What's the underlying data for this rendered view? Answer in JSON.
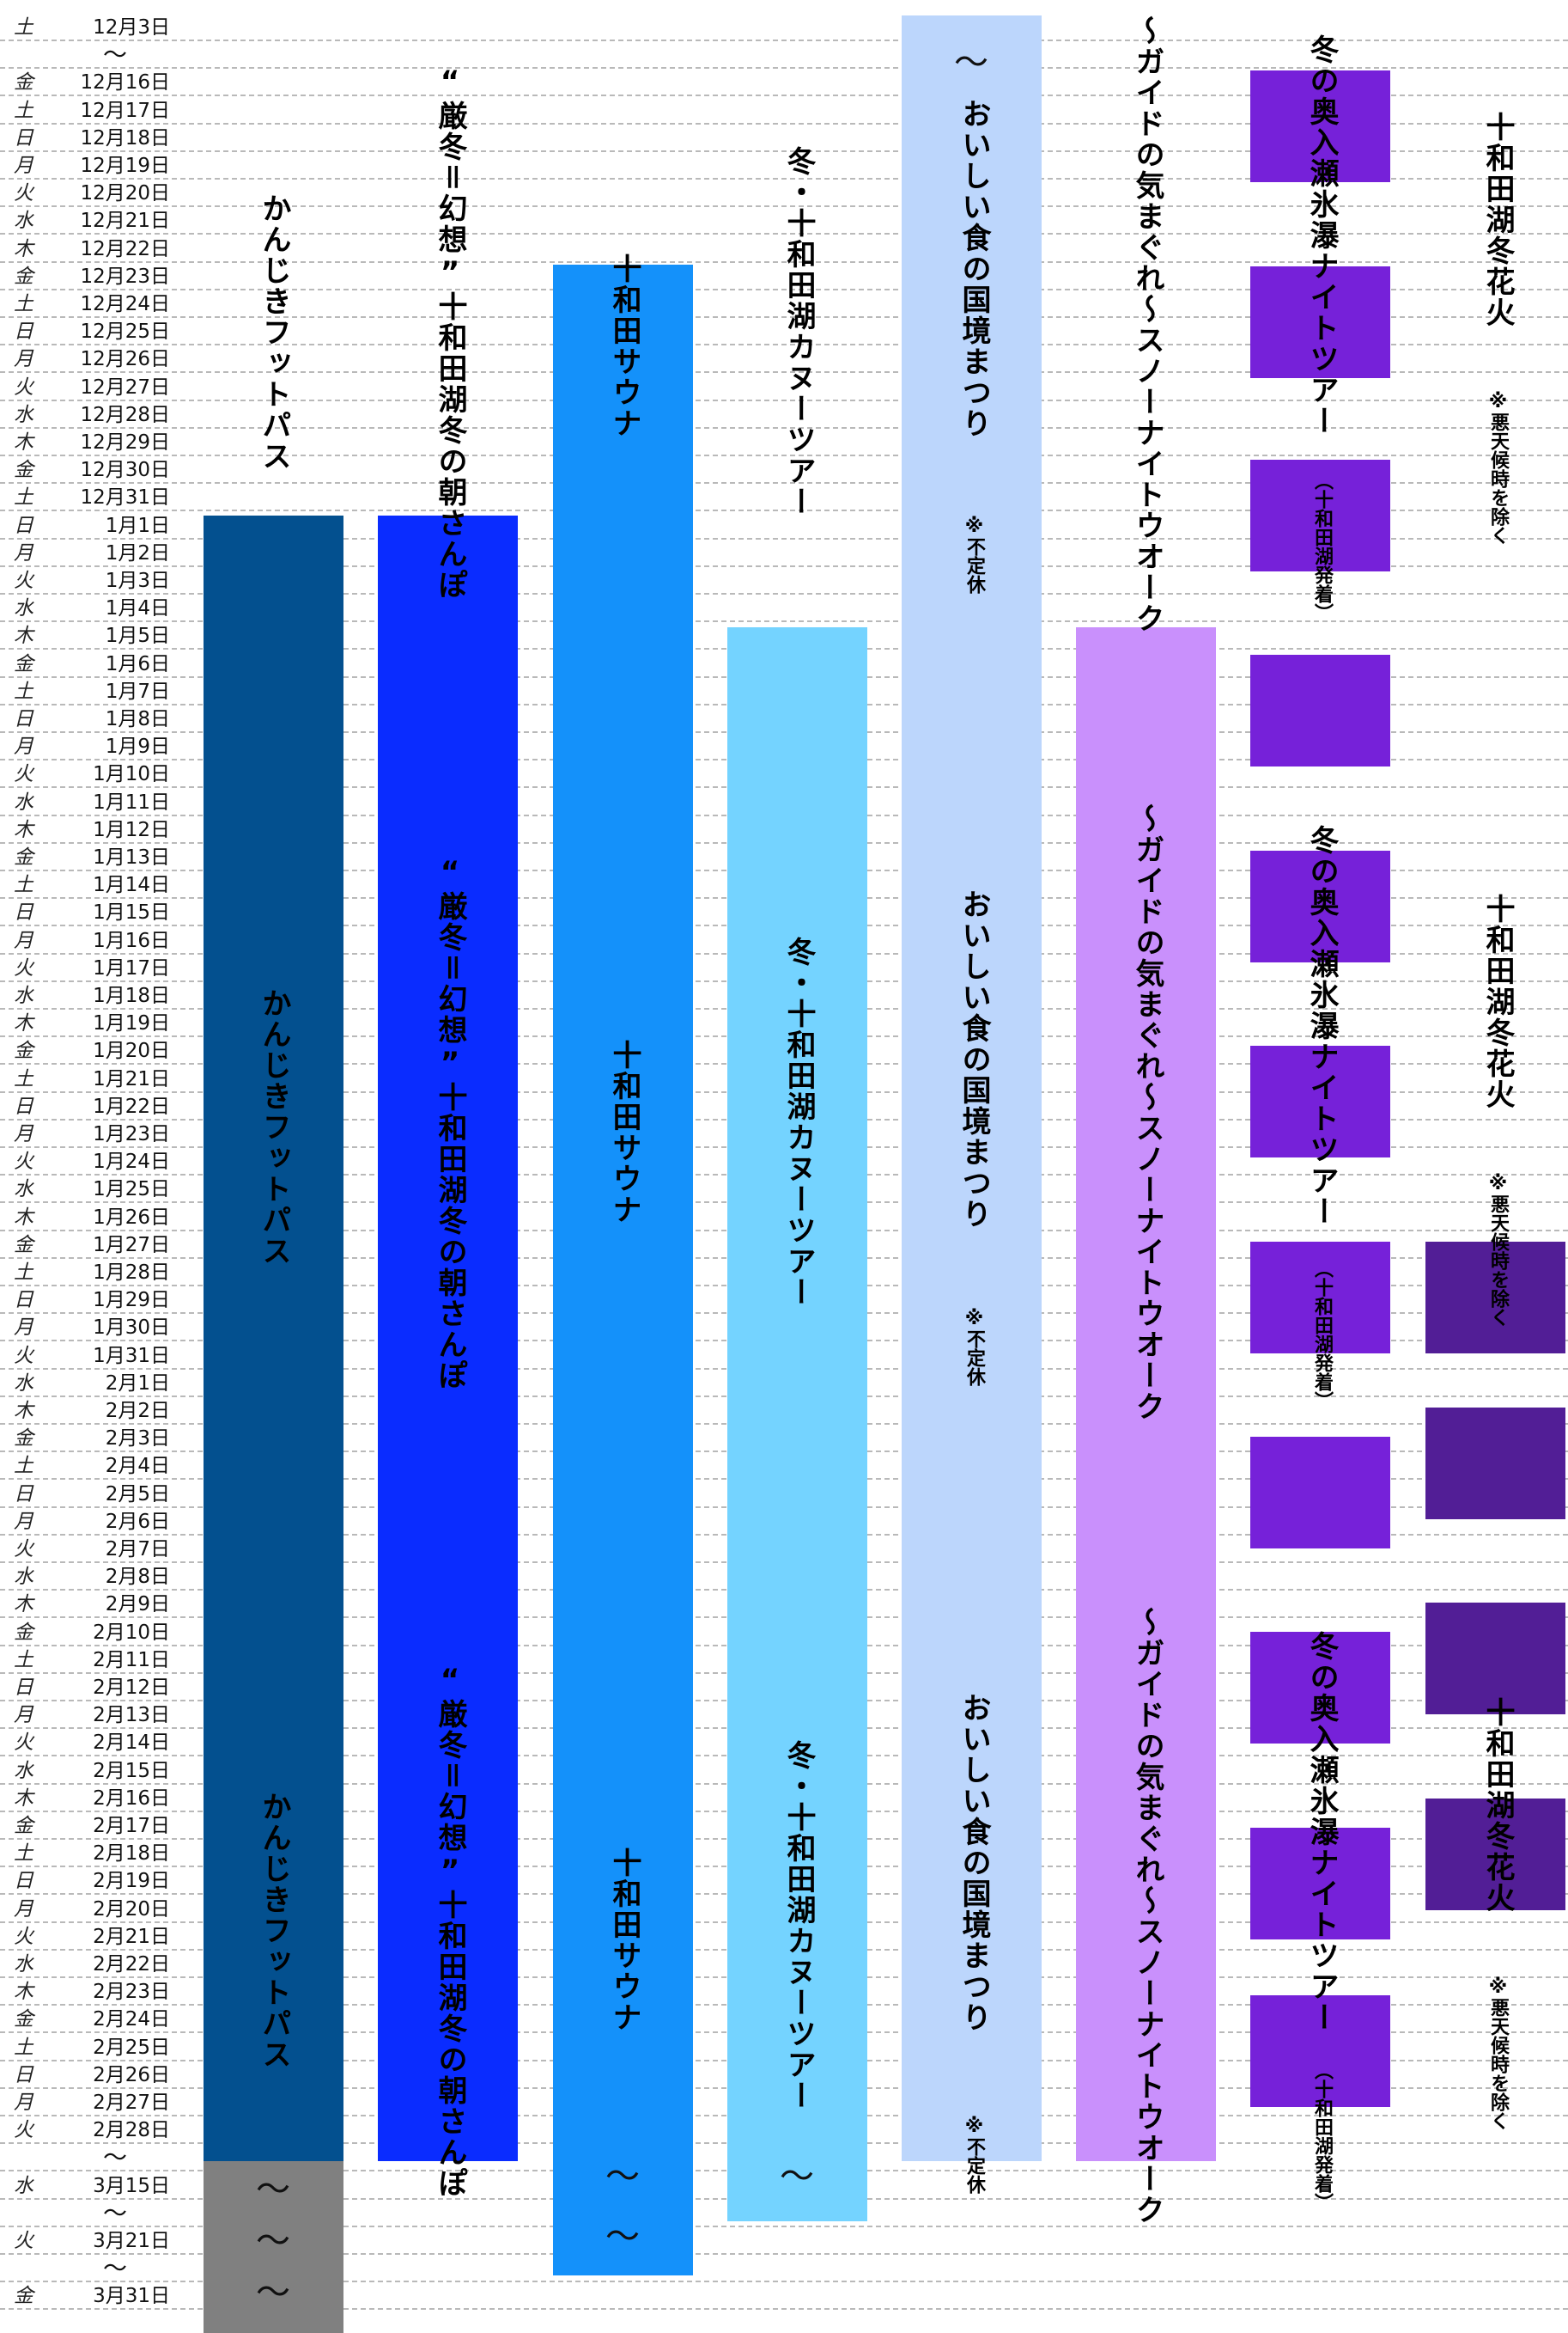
{
  "calendar": {
    "rows": [
      {
        "dow": "土",
        "date": "12月3日",
        "gap": false
      },
      {
        "dow": "",
        "date": "～",
        "gap": true
      },
      {
        "dow": "金",
        "date": "12月16日",
        "gap": false
      },
      {
        "dow": "土",
        "date": "12月17日",
        "gap": false
      },
      {
        "dow": "日",
        "date": "12月18日",
        "gap": false
      },
      {
        "dow": "月",
        "date": "12月19日",
        "gap": false
      },
      {
        "dow": "火",
        "date": "12月20日",
        "gap": false
      },
      {
        "dow": "水",
        "date": "12月21日",
        "gap": false
      },
      {
        "dow": "木",
        "date": "12月22日",
        "gap": false
      },
      {
        "dow": "金",
        "date": "12月23日",
        "gap": false
      },
      {
        "dow": "土",
        "date": "12月24日",
        "gap": false
      },
      {
        "dow": "日",
        "date": "12月25日",
        "gap": false
      },
      {
        "dow": "月",
        "date": "12月26日",
        "gap": false
      },
      {
        "dow": "火",
        "date": "12月27日",
        "gap": false
      },
      {
        "dow": "水",
        "date": "12月28日",
        "gap": false
      },
      {
        "dow": "木",
        "date": "12月29日",
        "gap": false
      },
      {
        "dow": "金",
        "date": "12月30日",
        "gap": false
      },
      {
        "dow": "土",
        "date": "12月31日",
        "gap": false
      },
      {
        "dow": "日",
        "date": "1月1日",
        "gap": false
      },
      {
        "dow": "月",
        "date": "1月2日",
        "gap": false
      },
      {
        "dow": "火",
        "date": "1月3日",
        "gap": false
      },
      {
        "dow": "水",
        "date": "1月4日",
        "gap": false
      },
      {
        "dow": "木",
        "date": "1月5日",
        "gap": false
      },
      {
        "dow": "金",
        "date": "1月6日",
        "gap": false
      },
      {
        "dow": "土",
        "date": "1月7日",
        "gap": false
      },
      {
        "dow": "日",
        "date": "1月8日",
        "gap": false
      },
      {
        "dow": "月",
        "date": "1月9日",
        "gap": false
      },
      {
        "dow": "火",
        "date": "1月10日",
        "gap": false
      },
      {
        "dow": "水",
        "date": "1月11日",
        "gap": false
      },
      {
        "dow": "木",
        "date": "1月12日",
        "gap": false
      },
      {
        "dow": "金",
        "date": "1月13日",
        "gap": false
      },
      {
        "dow": "土",
        "date": "1月14日",
        "gap": false
      },
      {
        "dow": "日",
        "date": "1月15日",
        "gap": false
      },
      {
        "dow": "月",
        "date": "1月16日",
        "gap": false
      },
      {
        "dow": "火",
        "date": "1月17日",
        "gap": false
      },
      {
        "dow": "水",
        "date": "1月18日",
        "gap": false
      },
      {
        "dow": "木",
        "date": "1月19日",
        "gap": false
      },
      {
        "dow": "金",
        "date": "1月20日",
        "gap": false
      },
      {
        "dow": "土",
        "date": "1月21日",
        "gap": false
      },
      {
        "dow": "日",
        "date": "1月22日",
        "gap": false
      },
      {
        "dow": "月",
        "date": "1月23日",
        "gap": false
      },
      {
        "dow": "火",
        "date": "1月24日",
        "gap": false
      },
      {
        "dow": "水",
        "date": "1月25日",
        "gap": false
      },
      {
        "dow": "木",
        "date": "1月26日",
        "gap": false
      },
      {
        "dow": "金",
        "date": "1月27日",
        "gap": false
      },
      {
        "dow": "土",
        "date": "1月28日",
        "gap": false
      },
      {
        "dow": "日",
        "date": "1月29日",
        "gap": false
      },
      {
        "dow": "月",
        "date": "1月30日",
        "gap": false
      },
      {
        "dow": "火",
        "date": "1月31日",
        "gap": false
      },
      {
        "dow": "水",
        "date": "2月1日",
        "gap": false
      },
      {
        "dow": "木",
        "date": "2月2日",
        "gap": false
      },
      {
        "dow": "金",
        "date": "2月3日",
        "gap": false
      },
      {
        "dow": "土",
        "date": "2月4日",
        "gap": false
      },
      {
        "dow": "日",
        "date": "2月5日",
        "gap": false
      },
      {
        "dow": "月",
        "date": "2月6日",
        "gap": false
      },
      {
        "dow": "火",
        "date": "2月7日",
        "gap": false
      },
      {
        "dow": "水",
        "date": "2月8日",
        "gap": false
      },
      {
        "dow": "木",
        "date": "2月9日",
        "gap": false
      },
      {
        "dow": "金",
        "date": "2月10日",
        "gap": false
      },
      {
        "dow": "土",
        "date": "2月11日",
        "gap": false
      },
      {
        "dow": "日",
        "date": "2月12日",
        "gap": false
      },
      {
        "dow": "月",
        "date": "2月13日",
        "gap": false
      },
      {
        "dow": "火",
        "date": "2月14日",
        "gap": false
      },
      {
        "dow": "水",
        "date": "2月15日",
        "gap": false
      },
      {
        "dow": "木",
        "date": "2月16日",
        "gap": false
      },
      {
        "dow": "金",
        "date": "2月17日",
        "gap": false
      },
      {
        "dow": "土",
        "date": "2月18日",
        "gap": false
      },
      {
        "dow": "日",
        "date": "2月19日",
        "gap": false
      },
      {
        "dow": "月",
        "date": "2月20日",
        "gap": false
      },
      {
        "dow": "火",
        "date": "2月21日",
        "gap": false
      },
      {
        "dow": "水",
        "date": "2月22日",
        "gap": false
      },
      {
        "dow": "木",
        "date": "2月23日",
        "gap": false
      },
      {
        "dow": "金",
        "date": "2月24日",
        "gap": false
      },
      {
        "dow": "土",
        "date": "2月25日",
        "gap": false
      },
      {
        "dow": "日",
        "date": "2月26日",
        "gap": false
      },
      {
        "dow": "月",
        "date": "2月27日",
        "gap": false
      },
      {
        "dow": "火",
        "date": "2月28日",
        "gap": false
      },
      {
        "dow": "",
        "date": "～",
        "gap": true
      },
      {
        "dow": "水",
        "date": "3月15日",
        "gap": false
      },
      {
        "dow": "",
        "date": "～",
        "gap": true
      },
      {
        "dow": "火",
        "date": "3月21日",
        "gap": false
      },
      {
        "dow": "",
        "date": "～",
        "gap": true
      },
      {
        "dow": "金",
        "date": "3月31日",
        "gap": false
      }
    ]
  },
  "events": {
    "kanjiki": {
      "name": "かんじきフットパス",
      "color": "#03508f",
      "extension_color": "#808080",
      "tilde": "～"
    },
    "asanpo": {
      "name": "“厳冬＝幻想”十和田湖冬の朝さんぽ",
      "color": "#0a2cff"
    },
    "sauna": {
      "name": "十和田サウナ",
      "color": "#1491fa",
      "tilde": "～"
    },
    "canoe": {
      "name": "冬・十和田湖カヌーツアー",
      "color": "#74d3ff",
      "tilde": "～"
    },
    "food": {
      "name": "おいしい食の国境まつり",
      "note": "※不定休",
      "color": "#bcd6fc",
      "tilde": "～"
    },
    "snow": {
      "name": "～ガイドの気まぐれ～スノーナイトウオーク",
      "color": "#c990fc"
    },
    "oirase": {
      "name": "冬の奥入瀬氷瀑ナイトツアー",
      "sub": "（十和田湖発着）",
      "color": "#7621d9"
    },
    "hanabi": {
      "name": "十和田湖冬花火",
      "note": "※悪天候時を除く",
      "color": "#521e96"
    }
  }
}
